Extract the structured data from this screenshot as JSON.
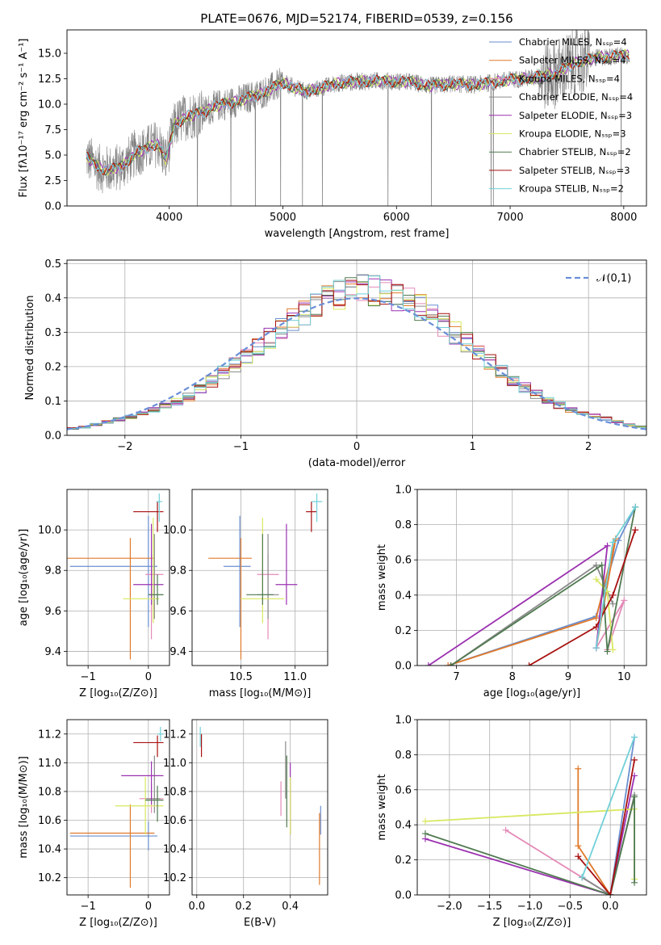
{
  "series_colors": [
    "#6a8fd0",
    "#e07a2a",
    "#e48ab8",
    "#8a8a8a",
    "#9b30b0",
    "#d8e860",
    "#507a50",
    "#a81010",
    "#70d0d8"
  ],
  "chart_data": [
    {
      "id": "spectrum",
      "type": "line",
      "title": "PLATE=0676, MJD=52174, FIBERID=0539, z=0.156",
      "xlabel": "wavelength [Angstrom, rest frame]",
      "ylabel": "Flux [fλ10⁻¹⁷ erg cm⁻² s⁻¹ A⁻¹]",
      "xlim": [
        3100,
        8200
      ],
      "ylim": [
        0,
        17.3
      ],
      "xticks": [
        "4000",
        "5000",
        "6000",
        "7000",
        "8000"
      ],
      "yticks": [
        "0.0",
        "2.5",
        "5.0",
        "7.5",
        "10.0",
        "12.5",
        "15.0"
      ],
      "grid": false,
      "legend_position": "top-right",
      "legend": [
        "Chabrier MILES, Nₛₛₚ=4",
        "Salpeter MILES, Nₛₛₚ=4",
        "Kroupa MILES, Nₛₛₚ=4",
        "Chabrier ELODIE, Nₛₛₚ=4",
        "Salpeter ELODIE, Nₛₛₚ=3",
        "Kroupa ELODIE, Nₛₛₚ=3",
        "Chabrier STELIB, Nₛₛₚ=2",
        "Salpeter STELIB, Nₛₛₚ=3",
        "Kroupa STELIB, Nₛₛₚ=2"
      ],
      "model_continuum": {
        "x": [
          3270,
          3400,
          3500,
          3600,
          3700,
          3800,
          3900,
          3970,
          4050,
          4150,
          4300,
          4400,
          4600,
          4800,
          5000,
          5200,
          5500,
          5800,
          6100,
          6300,
          6500,
          6700,
          7000,
          7200,
          7400,
          7600,
          7800,
          8000
        ],
        "y": [
          4.8,
          3.6,
          3.6,
          4.0,
          5.2,
          5.6,
          6.2,
          4.5,
          8.0,
          8.8,
          9.2,
          9.8,
          10.3,
          11.0,
          12.1,
          11.2,
          12.1,
          12.3,
          12.2,
          11.8,
          12.0,
          11.9,
          12.4,
          12.6,
          13.0,
          14.2,
          14.6,
          14.8
        ]
      },
      "observed_noise_note": "gray observed spectrum, noisy"
    },
    {
      "id": "residuals",
      "type": "bar",
      "xlabel": "(data-model)/error",
      "ylabel": "Normed distribution",
      "xlim": [
        -2.5,
        2.5
      ],
      "ylim": [
        0,
        0.51
      ],
      "xticks": [
        "−2",
        "−1",
        "0",
        "1",
        "2"
      ],
      "yticks": [
        "0.0",
        "0.1",
        "0.2",
        "0.3",
        "0.4",
        "0.5"
      ],
      "grid": true,
      "legend_position": "top-right",
      "legend": [
        "𝒩(0,1)"
      ],
      "histogram_envelope": {
        "x": [
          -2.4,
          -2.2,
          -2.0,
          -1.8,
          -1.6,
          -1.4,
          -1.2,
          -1.0,
          -0.8,
          -0.6,
          -0.4,
          -0.2,
          0.0,
          0.2,
          0.4,
          0.6,
          0.8,
          1.0,
          1.2,
          1.4,
          1.6,
          1.8,
          2.0,
          2.2,
          2.4
        ],
        "y": [
          0.02,
          0.035,
          0.05,
          0.07,
          0.09,
          0.12,
          0.17,
          0.22,
          0.27,
          0.32,
          0.37,
          0.4,
          0.43,
          0.42,
          0.4,
          0.36,
          0.31,
          0.26,
          0.2,
          0.15,
          0.11,
          0.08,
          0.06,
          0.045,
          0.025
        ]
      }
    },
    {
      "id": "age-vs-Z",
      "type": "scatter",
      "xlabel": "Z [log₁₀(Z/Z⊙)]",
      "ylabel": "age  [log₁₀(age/yr)]",
      "xlim": [
        -1.35,
        0.35
      ],
      "ylim": [
        9.33,
        10.2
      ],
      "xticks": [
        "−1",
        "0"
      ],
      "yticks": [
        "9.4",
        "9.6",
        "9.8",
        "10.0"
      ],
      "grid": true,
      "points": [
        {
          "x": 0.0,
          "y": 9.82,
          "xerr": [
            1.3,
            0.15
          ],
          "yerr": [
            0.3,
            0.25
          ]
        },
        {
          "x": -0.3,
          "y": 9.86,
          "xerr": [
            1.3,
            0.4
          ],
          "yerr": [
            0.5,
            0.1
          ]
        },
        {
          "x": 0.05,
          "y": 9.78,
          "xerr": [
            0.1,
            0.2
          ],
          "yerr": [
            0.32,
            0.1
          ]
        },
        {
          "x": 0.1,
          "y": 9.68,
          "xerr": [
            0.1,
            0.15
          ],
          "yerr": [
            0.12,
            0.3
          ]
        },
        {
          "x": 0.05,
          "y": 9.73,
          "xerr": [
            0.3,
            0.2
          ],
          "yerr": [
            0.1,
            0.3
          ]
        },
        {
          "x": 0.08,
          "y": 9.66,
          "xerr": [
            0.5,
            0.1
          ],
          "yerr": [
            0.12,
            0.4
          ]
        },
        {
          "x": 0.15,
          "y": 9.68,
          "xerr": [
            0.15,
            0.1
          ],
          "yerr": [
            0.05,
            0.1
          ]
        },
        {
          "x": 0.15,
          "y": 10.09,
          "xerr": [
            0.4,
            0.1
          ],
          "yerr": [
            0.1,
            0.05
          ]
        },
        {
          "x": 0.18,
          "y": 10.14,
          "xerr": [
            0.05,
            0.05
          ],
          "yerr": [
            0.1,
            0.04
          ]
        }
      ]
    },
    {
      "id": "age-vs-mass",
      "type": "scatter",
      "xlabel": "mass [log₁₀(M/M⊙)]",
      "ylabel": "",
      "xlim": [
        10.05,
        11.3
      ],
      "ylim": [
        9.33,
        10.2
      ],
      "xticks": [
        "10.5",
        "11.0"
      ],
      "yticks": [
        "9.4",
        "9.6",
        "9.8",
        "10.0"
      ],
      "grid": true,
      "points": [
        {
          "x": 10.49,
          "y": 9.82,
          "xerr": [
            0.15,
            0.1
          ],
          "yerr": [
            0.3,
            0.25
          ]
        },
        {
          "x": 10.5,
          "y": 9.86,
          "xerr": [
            0.3,
            0.1
          ],
          "yerr": [
            0.5,
            0.1
          ]
        },
        {
          "x": 10.75,
          "y": 9.78,
          "xerr": [
            0.1,
            0.1
          ],
          "yerr": [
            0.32,
            0.1
          ]
        },
        {
          "x": 10.75,
          "y": 9.68,
          "xerr": [
            0.1,
            0.1
          ],
          "yerr": [
            0.12,
            0.3
          ]
        },
        {
          "x": 10.92,
          "y": 9.73,
          "xerr": [
            0.1,
            0.1
          ],
          "yerr": [
            0.1,
            0.3
          ]
        },
        {
          "x": 10.7,
          "y": 9.66,
          "xerr": [
            0.2,
            0.2
          ],
          "yerr": [
            0.12,
            0.4
          ]
        },
        {
          "x": 10.7,
          "y": 9.68,
          "xerr": [
            0.15,
            0.1
          ],
          "yerr": [
            0.05,
            0.3
          ]
        },
        {
          "x": 11.15,
          "y": 10.09,
          "xerr": [
            0.05,
            0.05
          ],
          "yerr": [
            0.1,
            0.05
          ]
        },
        {
          "x": 11.2,
          "y": 10.14,
          "xerr": [
            0.05,
            0.05
          ],
          "yerr": [
            0.1,
            0.04
          ]
        }
      ]
    },
    {
      "id": "weight-vs-age",
      "type": "line",
      "xlabel": "age  [log₁₀(age/yr)]",
      "ylabel": "mass weight",
      "xlim": [
        6.3,
        10.4
      ],
      "ylim": [
        0,
        1.0
      ],
      "xticks": [
        "7",
        "8",
        "9",
        "10"
      ],
      "yticks": [
        "0.0",
        "0.2",
        "0.4",
        "0.6",
        "0.8",
        "1.0"
      ],
      "grid": true,
      "series": [
        {
          "x": [
            6.85,
            9.5,
            9.9,
            10.2
          ],
          "y": [
            0.0,
            0.28,
            0.71,
            0.9
          ]
        },
        {
          "x": [
            6.85,
            9.5,
            9.85,
            9.5
          ],
          "y": [
            0.0,
            0.27,
            0.72,
            0.1
          ]
        },
        {
          "x": [
            9.5,
            10.0,
            9.7
          ],
          "y": [
            0.1,
            0.37,
            0.09
          ]
        },
        {
          "x": [
            6.9,
            9.5,
            9.8
          ],
          "y": [
            0.0,
            0.57,
            0.35
          ]
        },
        {
          "x": [
            6.5,
            9.7,
            9.5
          ],
          "y": [
            0.0,
            0.68,
            0.1
          ]
        },
        {
          "x": [
            9.5,
            9.7,
            9.8
          ],
          "y": [
            0.49,
            0.42,
            0.09
          ]
        },
        {
          "x": [
            6.9,
            9.6,
            9.7,
            10.2
          ],
          "y": [
            0.0,
            0.57,
            0.08,
            0.9
          ]
        },
        {
          "x": [
            8.3,
            9.5,
            9.8,
            10.2
          ],
          "y": [
            0.0,
            0.22,
            0.4,
            0.77
          ]
        },
        {
          "x": [
            9.5,
            9.8,
            10.2
          ],
          "y": [
            0.1,
            0.7,
            0.9
          ]
        }
      ]
    },
    {
      "id": "mass-vs-Z",
      "type": "scatter",
      "xlabel": "Z [log₁₀(Z/Z⊙)]",
      "ylabel": "mass [log₁₀(M/M⊙)]",
      "xlim": [
        -1.35,
        0.35
      ],
      "ylim": [
        10.08,
        11.3
      ],
      "xticks": [
        "−1",
        "0"
      ],
      "yticks": [
        "10.2",
        "10.4",
        "10.6",
        "10.8",
        "11.0",
        "11.2"
      ],
      "grid": true,
      "points": [
        {
          "x": 0.0,
          "y": 10.49,
          "xerr": [
            1.3,
            0.15
          ],
          "yerr": [
            0.1,
            0.1
          ]
        },
        {
          "x": -0.3,
          "y": 10.51,
          "xerr": [
            1.0,
            0.4
          ],
          "yerr": [
            0.38,
            0.2
          ]
        },
        {
          "x": 0.05,
          "y": 10.75,
          "xerr": [
            0.2,
            0.2
          ],
          "yerr": [
            0.1,
            0.1
          ]
        },
        {
          "x": 0.1,
          "y": 10.75,
          "xerr": [
            0.15,
            0.1
          ],
          "yerr": [
            0.1,
            0.3
          ]
        },
        {
          "x": 0.05,
          "y": 10.91,
          "xerr": [
            0.5,
            0.2
          ],
          "yerr": [
            0.2,
            0.1
          ]
        },
        {
          "x": -0.05,
          "y": 10.7,
          "xerr": [
            0.5,
            0.3
          ],
          "yerr": [
            0.2,
            0.2
          ]
        },
        {
          "x": 0.15,
          "y": 10.74,
          "xerr": [
            0.2,
            0.1
          ],
          "yerr": [
            0.15,
            0.1
          ]
        },
        {
          "x": 0.15,
          "y": 11.14,
          "xerr": [
            0.4,
            0.1
          ],
          "yerr": [
            0.1,
            0.05
          ]
        },
        {
          "x": 0.2,
          "y": 11.2,
          "xerr": [
            0.05,
            0.05
          ],
          "yerr": [
            0.05,
            0.05
          ]
        }
      ]
    },
    {
      "id": "mass-vs-ebv",
      "type": "scatter",
      "xlabel": "E(B-V)",
      "ylabel": "",
      "xlim": [
        -0.02,
        0.56
      ],
      "ylim": [
        10.08,
        11.3
      ],
      "xticks": [
        "0.0",
        "0.2",
        "0.4"
      ],
      "yticks": [
        "10.2",
        "10.4",
        "10.6",
        "10.8",
        "11.0",
        "11.2"
      ],
      "grid": true,
      "points": [
        {
          "x": 0.53,
          "y": 10.6,
          "yerr": [
            0.1,
            0.1
          ]
        },
        {
          "x": 0.525,
          "y": 10.4,
          "yerr": [
            0.25,
            0.25
          ]
        },
        {
          "x": 0.36,
          "y": 10.75,
          "yerr": [
            0.12,
            0.12
          ]
        },
        {
          "x": 0.38,
          "y": 10.95,
          "yerr": [
            0.2,
            0.2
          ]
        },
        {
          "x": 0.4,
          "y": 10.75,
          "yerr": [
            0.25,
            0.25
          ]
        },
        {
          "x": 0.4,
          "y": 10.7,
          "yerr": [
            0.2,
            0.2
          ]
        },
        {
          "x": 0.385,
          "y": 10.8,
          "yerr": [
            0.25,
            0.25
          ]
        },
        {
          "x": 0.02,
          "y": 11.12,
          "yerr": [
            0.08,
            0.08
          ]
        },
        {
          "x": 0.015,
          "y": 11.18,
          "yerr": [
            0.07,
            0.07
          ]
        }
      ]
    },
    {
      "id": "weight-vs-Z",
      "type": "line",
      "xlabel": "Z [log₁₀(Z/Z⊙)]",
      "ylabel": "mass weight",
      "xlim": [
        -2.4,
        0.45
      ],
      "ylim": [
        0,
        1.0
      ],
      "xticks": [
        "−2.0",
        "−1.5",
        "−1.0",
        "−0.5",
        "0.0"
      ],
      "yticks": [
        "0.0",
        "0.2",
        "0.4",
        "0.6",
        "0.8",
        "1.0"
      ],
      "grid": true,
      "series": [
        {
          "x": [
            -0.35,
            0.0,
            0.3
          ],
          "y": [
            0.1,
            0.0,
            0.9
          ]
        },
        {
          "x": [
            -0.4,
            -0.4,
            0.0
          ],
          "y": [
            0.72,
            0.28,
            0.0
          ]
        },
        {
          "x": [
            -1.3,
            0.0
          ],
          "y": [
            0.37,
            0.0
          ]
        },
        {
          "x": [
            -0.35,
            0.0,
            0.3
          ],
          "y": [
            0.1,
            0.0,
            0.57
          ]
        },
        {
          "x": [
            -2.3,
            0.0,
            0.3
          ],
          "y": [
            0.32,
            0.0,
            0.68
          ]
        },
        {
          "x": [
            -2.3,
            0.3,
            0.3
          ],
          "y": [
            0.42,
            0.49,
            0.09
          ]
        },
        {
          "x": [
            -2.3,
            0.0,
            0.3,
            0.3
          ],
          "y": [
            0.35,
            0.0,
            0.56,
            0.07
          ]
        },
        {
          "x": [
            -0.4,
            0.0,
            0.3
          ],
          "y": [
            0.22,
            0.0,
            0.77
          ]
        },
        {
          "x": [
            -0.35,
            0.3
          ],
          "y": [
            0.1,
            0.9
          ]
        }
      ]
    }
  ]
}
